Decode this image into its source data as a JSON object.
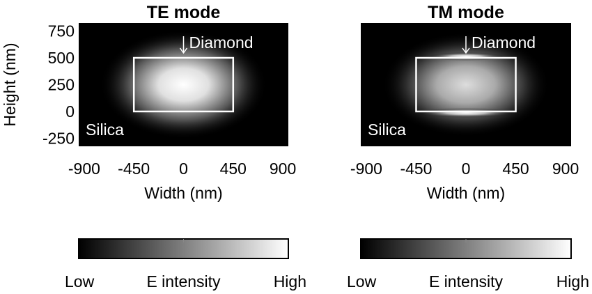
{
  "chart_data": [
    {
      "type": "heatmap",
      "title": "TE mode",
      "xlabel": "Width (nm)",
      "ylabel": "Height (nm)",
      "xticks": [
        -900,
        -450,
        0,
        450,
        900
      ],
      "yticks": [
        750,
        500,
        250,
        0,
        -250
      ],
      "xlim": [
        -950,
        950
      ],
      "ylim": [
        -325,
        825
      ],
      "colormap": "gray",
      "waveguide_outline": {
        "x": [
          -450,
          450
        ],
        "y": [
          0,
          500
        ]
      },
      "peak": {
        "x": 0,
        "y": 250
      },
      "annotations": {
        "core": "Diamond",
        "substrate": "Silica"
      },
      "colorbar": {
        "label": "E intensity",
        "low": "Low",
        "high": "High"
      }
    },
    {
      "type": "heatmap",
      "title": "TM mode",
      "xlabel": "Width (nm)",
      "ylabel": "",
      "xticks": [
        -900,
        -450,
        0,
        450,
        900
      ],
      "yticks": [],
      "xlim": [
        -950,
        950
      ],
      "ylim": [
        -325,
        825
      ],
      "colormap": "gray",
      "waveguide_outline": {
        "x": [
          -450,
          450
        ],
        "y": [
          0,
          500
        ]
      },
      "peak": {
        "x": 0,
        "y": 250
      },
      "annotations": {
        "core": "Diamond",
        "substrate": "Silica"
      },
      "colorbar": {
        "label": "E intensity",
        "low": "Low",
        "high": "High"
      }
    }
  ]
}
